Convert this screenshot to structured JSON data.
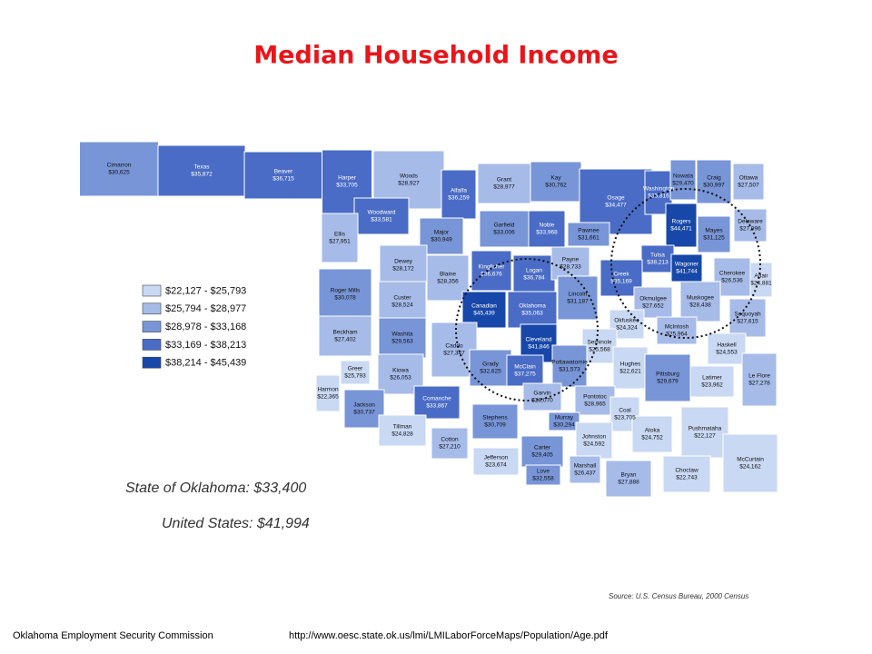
{
  "title": "Median Household Income",
  "legend": [
    {
      "label": "$22,127 - $25,793",
      "color": "#c9d8f3"
    },
    {
      "label": "$25,794 - $28,977",
      "color": "#a6bbe8"
    },
    {
      "label": "$28,978 - $33,168",
      "color": "#7895d7"
    },
    {
      "label": "$33,169 - $38,213",
      "color": "#4a6cc6"
    },
    {
      "label": "$38,214 - $45,439",
      "color": "#1747a8"
    }
  ],
  "counties": [
    {
      "name": "Cimarron",
      "income": "$30,625"
    },
    {
      "name": "Texas",
      "income": "$35,872"
    },
    {
      "name": "Beaver",
      "income": "$36,715"
    },
    {
      "name": "Harper",
      "income": "$33,705"
    },
    {
      "name": "Woods",
      "income": "$28,927"
    },
    {
      "name": "Alfalfa",
      "income": "$36,259"
    },
    {
      "name": "Grant",
      "income": "$28,977"
    },
    {
      "name": "Kay",
      "income": "$30,762"
    },
    {
      "name": "Osage",
      "income": "$34,477"
    },
    {
      "name": "Washington",
      "income": "$35,816"
    },
    {
      "name": "Nowata",
      "income": "$29,470"
    },
    {
      "name": "Craig",
      "income": "$30,997"
    },
    {
      "name": "Ottawa",
      "income": "$27,507"
    },
    {
      "name": "Woodward",
      "income": "$33,581"
    },
    {
      "name": "Ellis",
      "income": "$27,951"
    },
    {
      "name": "Major",
      "income": "$30,949"
    },
    {
      "name": "Garfield",
      "income": "$33,006"
    },
    {
      "name": "Noble",
      "income": "$33,968"
    },
    {
      "name": "Pawnee",
      "income": "$31,661"
    },
    {
      "name": "Rogers",
      "income": "$44,471"
    },
    {
      "name": "Mayes",
      "income": "$31,125"
    },
    {
      "name": "Delaware",
      "income": "$27,996"
    },
    {
      "name": "Dewey",
      "income": "$28,172"
    },
    {
      "name": "Blaine",
      "income": "$28,356"
    },
    {
      "name": "Kingfisher",
      "income": "$36,676"
    },
    {
      "name": "Logan",
      "income": "$36,784"
    },
    {
      "name": "Payne",
      "income": "$28,733"
    },
    {
      "name": "Tulsa",
      "income": "$38,213"
    },
    {
      "name": "Wagoner",
      "income": "$41,744"
    },
    {
      "name": "Cherokee",
      "income": "$26,536"
    },
    {
      "name": "Adair",
      "income": "$24,881"
    },
    {
      "name": "Creek",
      "income": "$35,169"
    },
    {
      "name": "Roger Mills",
      "income": "$30,078"
    },
    {
      "name": "Custer",
      "income": "$28,524"
    },
    {
      "name": "Canadian",
      "income": "$45,439"
    },
    {
      "name": "Oklahoma",
      "income": "$35,063"
    },
    {
      "name": "Lincoln",
      "income": "$31,187"
    },
    {
      "name": "Okmulgee",
      "income": "$27,652"
    },
    {
      "name": "Muskogee",
      "income": "$28,438"
    },
    {
      "name": "Okfuskee",
      "income": "$24,324"
    },
    {
      "name": "McIntosh",
      "income": "$25,964"
    },
    {
      "name": "Sequoyah",
      "income": "$27,615"
    },
    {
      "name": "Beckham",
      "income": "$27,402"
    },
    {
      "name": "Washita",
      "income": "$29,563"
    },
    {
      "name": "Caddo",
      "income": "$27,347"
    },
    {
      "name": "Cleveland",
      "income": "$41,846"
    },
    {
      "name": "Seminole",
      "income": "$25,568"
    },
    {
      "name": "Grady",
      "income": "$32,625"
    },
    {
      "name": "McClain",
      "income": "$37,275"
    },
    {
      "name": "Pottawatomie",
      "income": "$31,573"
    },
    {
      "name": "Hughes",
      "income": "$22,621"
    },
    {
      "name": "Haskell",
      "income": "$24,553"
    },
    {
      "name": "Pittsburg",
      "income": "$29,679"
    },
    {
      "name": "Latimer",
      "income": "$23,962"
    },
    {
      "name": "Le Flore",
      "income": "$27,278"
    },
    {
      "name": "Greer",
      "income": "$25,793"
    },
    {
      "name": "Harmon",
      "income": "$22,365"
    },
    {
      "name": "Kiowa",
      "income": "$26,053"
    },
    {
      "name": "Jackson",
      "income": "$30,737"
    },
    {
      "name": "Comanche",
      "income": "$33,867"
    },
    {
      "name": "Garvin",
      "income": "$28,070"
    },
    {
      "name": "Pontotoc",
      "income": "$28,965"
    },
    {
      "name": "Coal",
      "income": "$23,705"
    },
    {
      "name": "Murray",
      "income": "$30,294"
    },
    {
      "name": "Stephens",
      "income": "$30,709"
    },
    {
      "name": "Tillman",
      "income": "$24,828"
    },
    {
      "name": "Cotton",
      "income": "$27,210"
    },
    {
      "name": "Atoka",
      "income": "$24,752"
    },
    {
      "name": "Pushmataha",
      "income": "$22,127"
    },
    {
      "name": "Johnston",
      "income": "$24,592"
    },
    {
      "name": "Carter",
      "income": "$29,405"
    },
    {
      "name": "Jefferson",
      "income": "$23,674"
    },
    {
      "name": "Love",
      "income": "$32,558"
    },
    {
      "name": "Marshall",
      "income": "$26,437"
    },
    {
      "name": "Bryan",
      "income": "$27,888"
    },
    {
      "name": "Choctaw",
      "income": "$22,743"
    },
    {
      "name": "McCurtain",
      "income": "$24,162"
    }
  ],
  "state_total": "State of Oklahoma: $33,400",
  "us_total": "United States: $41,994",
  "source": "Source: U.S. Census Bureau, 2000 Census",
  "footer": {
    "org": "Oklahoma Employment Security Commission",
    "url": "http://www.oesc.state.ok.us/lmi/LMILaborForceMaps/Population/Age.pdf"
  }
}
